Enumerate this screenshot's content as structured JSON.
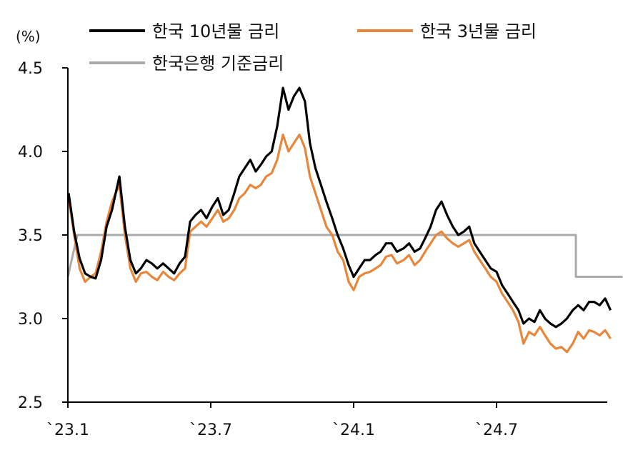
{
  "chart_data": {
    "type": "line",
    "title": "",
    "xlabel": "",
    "ylabel": "(%)",
    "ylim": [
      2.5,
      4.5
    ],
    "yticks": [
      "4.5",
      "4.0",
      "3.5",
      "3.0",
      "2.5"
    ],
    "xticks": [
      "`23.1",
      "`23.7",
      "`24.1",
      "`24.7"
    ],
    "x_range": [
      "2023-01",
      "2024-12"
    ],
    "legend_position": "top",
    "grid": false,
    "series": [
      {
        "name": "한국 10년물 금리",
        "color": "#000000",
        "points": [
          [
            "2023-01-02",
            3.75
          ],
          [
            "2023-01-09",
            3.52
          ],
          [
            "2023-01-16",
            3.36
          ],
          [
            "2023-01-23",
            3.27
          ],
          [
            "2023-01-30",
            3.25
          ],
          [
            "2023-02-06",
            3.24
          ],
          [
            "2023-02-13",
            3.35
          ],
          [
            "2023-02-20",
            3.55
          ],
          [
            "2023-02-27",
            3.65
          ],
          [
            "2023-03-06",
            3.85
          ],
          [
            "2023-03-13",
            3.55
          ],
          [
            "2023-03-20",
            3.35
          ],
          [
            "2023-03-27",
            3.27
          ],
          [
            "2023-04-03",
            3.3
          ],
          [
            "2023-04-10",
            3.35
          ],
          [
            "2023-04-17",
            3.33
          ],
          [
            "2023-04-24",
            3.3
          ],
          [
            "2023-05-01",
            3.33
          ],
          [
            "2023-05-08",
            3.3
          ],
          [
            "2023-05-15",
            3.27
          ],
          [
            "2023-05-22",
            3.33
          ],
          [
            "2023-05-29",
            3.37
          ],
          [
            "2023-06-05",
            3.58
          ],
          [
            "2023-06-12",
            3.62
          ],
          [
            "2023-06-19",
            3.65
          ],
          [
            "2023-06-26",
            3.6
          ],
          [
            "2023-07-03",
            3.67
          ],
          [
            "2023-07-10",
            3.72
          ],
          [
            "2023-07-17",
            3.62
          ],
          [
            "2023-07-24",
            3.65
          ],
          [
            "2023-07-31",
            3.75
          ],
          [
            "2023-08-07",
            3.85
          ],
          [
            "2023-08-14",
            3.9
          ],
          [
            "2023-08-21",
            3.95
          ],
          [
            "2023-08-28",
            3.88
          ],
          [
            "2023-09-04",
            3.92
          ],
          [
            "2023-09-11",
            3.97
          ],
          [
            "2023-09-18",
            4.0
          ],
          [
            "2023-09-25",
            4.15
          ],
          [
            "2023-10-02",
            4.38
          ],
          [
            "2023-10-09",
            4.25
          ],
          [
            "2023-10-16",
            4.33
          ],
          [
            "2023-10-23",
            4.38
          ],
          [
            "2023-10-30",
            4.3
          ],
          [
            "2023-11-06",
            4.05
          ],
          [
            "2023-11-13",
            3.9
          ],
          [
            "2023-11-20",
            3.8
          ],
          [
            "2023-11-27",
            3.7
          ],
          [
            "2023-12-04",
            3.6
          ],
          [
            "2023-12-11",
            3.5
          ],
          [
            "2023-12-18",
            3.42
          ],
          [
            "2023-12-25",
            3.32
          ],
          [
            "2024-01-01",
            3.25
          ],
          [
            "2024-01-08",
            3.3
          ],
          [
            "2024-01-15",
            3.35
          ],
          [
            "2024-01-22",
            3.35
          ],
          [
            "2024-01-29",
            3.38
          ],
          [
            "2024-02-05",
            3.4
          ],
          [
            "2024-02-12",
            3.45
          ],
          [
            "2024-02-19",
            3.45
          ],
          [
            "2024-02-26",
            3.4
          ],
          [
            "2024-03-04",
            3.42
          ],
          [
            "2024-03-11",
            3.45
          ],
          [
            "2024-03-18",
            3.4
          ],
          [
            "2024-03-25",
            3.42
          ],
          [
            "2024-04-01",
            3.48
          ],
          [
            "2024-04-08",
            3.55
          ],
          [
            "2024-04-15",
            3.65
          ],
          [
            "2024-04-22",
            3.7
          ],
          [
            "2024-04-29",
            3.62
          ],
          [
            "2024-05-06",
            3.55
          ],
          [
            "2024-05-13",
            3.5
          ],
          [
            "2024-05-20",
            3.52
          ],
          [
            "2024-05-27",
            3.55
          ],
          [
            "2024-06-03",
            3.45
          ],
          [
            "2024-06-10",
            3.4
          ],
          [
            "2024-06-17",
            3.35
          ],
          [
            "2024-06-24",
            3.3
          ],
          [
            "2024-07-01",
            3.28
          ],
          [
            "2024-07-08",
            3.2
          ],
          [
            "2024-07-15",
            3.15
          ],
          [
            "2024-07-22",
            3.1
          ],
          [
            "2024-07-29",
            3.05
          ],
          [
            "2024-08-05",
            2.97
          ],
          [
            "2024-08-12",
            3.0
          ],
          [
            "2024-08-19",
            2.98
          ],
          [
            "2024-08-26",
            3.05
          ],
          [
            "2024-09-02",
            3.0
          ],
          [
            "2024-09-09",
            2.97
          ],
          [
            "2024-09-16",
            2.95
          ],
          [
            "2024-09-23",
            2.97
          ],
          [
            "2024-09-30",
            3.0
          ],
          [
            "2024-10-07",
            3.05
          ],
          [
            "2024-10-14",
            3.08
          ],
          [
            "2024-10-21",
            3.05
          ],
          [
            "2024-10-28",
            3.1
          ],
          [
            "2024-11-04",
            3.1
          ],
          [
            "2024-11-11",
            3.08
          ],
          [
            "2024-11-18",
            3.12
          ],
          [
            "2024-11-25",
            3.05
          ]
        ]
      },
      {
        "name": "한국 3년물 금리",
        "color": "#E8863A",
        "points": [
          [
            "2023-01-02",
            3.72
          ],
          [
            "2023-01-09",
            3.5
          ],
          [
            "2023-01-16",
            3.3
          ],
          [
            "2023-01-23",
            3.22
          ],
          [
            "2023-01-30",
            3.25
          ],
          [
            "2023-02-06",
            3.27
          ],
          [
            "2023-02-13",
            3.4
          ],
          [
            "2023-02-20",
            3.58
          ],
          [
            "2023-02-27",
            3.7
          ],
          [
            "2023-03-06",
            3.8
          ],
          [
            "2023-03-13",
            3.5
          ],
          [
            "2023-03-20",
            3.3
          ],
          [
            "2023-03-27",
            3.22
          ],
          [
            "2023-04-03",
            3.27
          ],
          [
            "2023-04-10",
            3.28
          ],
          [
            "2023-04-17",
            3.25
          ],
          [
            "2023-04-24",
            3.23
          ],
          [
            "2023-05-01",
            3.28
          ],
          [
            "2023-05-08",
            3.25
          ],
          [
            "2023-05-15",
            3.23
          ],
          [
            "2023-05-22",
            3.27
          ],
          [
            "2023-05-29",
            3.3
          ],
          [
            "2023-06-05",
            3.52
          ],
          [
            "2023-06-12",
            3.55
          ],
          [
            "2023-06-19",
            3.58
          ],
          [
            "2023-06-26",
            3.55
          ],
          [
            "2023-07-03",
            3.6
          ],
          [
            "2023-07-10",
            3.65
          ],
          [
            "2023-07-17",
            3.58
          ],
          [
            "2023-07-24",
            3.6
          ],
          [
            "2023-07-31",
            3.65
          ],
          [
            "2023-08-07",
            3.72
          ],
          [
            "2023-08-14",
            3.75
          ],
          [
            "2023-08-21",
            3.8
          ],
          [
            "2023-08-28",
            3.78
          ],
          [
            "2023-09-04",
            3.8
          ],
          [
            "2023-09-11",
            3.85
          ],
          [
            "2023-09-18",
            3.87
          ],
          [
            "2023-09-25",
            3.95
          ],
          [
            "2023-10-02",
            4.1
          ],
          [
            "2023-10-09",
            4.0
          ],
          [
            "2023-10-16",
            4.05
          ],
          [
            "2023-10-23",
            4.1
          ],
          [
            "2023-10-30",
            4.02
          ],
          [
            "2023-11-06",
            3.85
          ],
          [
            "2023-11-13",
            3.75
          ],
          [
            "2023-11-20",
            3.65
          ],
          [
            "2023-11-27",
            3.55
          ],
          [
            "2023-12-04",
            3.5
          ],
          [
            "2023-12-11",
            3.4
          ],
          [
            "2023-12-18",
            3.35
          ],
          [
            "2023-12-25",
            3.22
          ],
          [
            "2024-01-01",
            3.17
          ],
          [
            "2024-01-08",
            3.25
          ],
          [
            "2024-01-15",
            3.27
          ],
          [
            "2024-01-22",
            3.28
          ],
          [
            "2024-01-29",
            3.3
          ],
          [
            "2024-02-05",
            3.32
          ],
          [
            "2024-02-12",
            3.37
          ],
          [
            "2024-02-19",
            3.38
          ],
          [
            "2024-02-26",
            3.33
          ],
          [
            "2024-03-04",
            3.35
          ],
          [
            "2024-03-11",
            3.38
          ],
          [
            "2024-03-18",
            3.32
          ],
          [
            "2024-03-25",
            3.35
          ],
          [
            "2024-04-01",
            3.4
          ],
          [
            "2024-04-08",
            3.45
          ],
          [
            "2024-04-15",
            3.5
          ],
          [
            "2024-04-22",
            3.52
          ],
          [
            "2024-04-29",
            3.48
          ],
          [
            "2024-05-06",
            3.45
          ],
          [
            "2024-05-13",
            3.43
          ],
          [
            "2024-05-20",
            3.45
          ],
          [
            "2024-05-27",
            3.47
          ],
          [
            "2024-06-03",
            3.4
          ],
          [
            "2024-06-10",
            3.35
          ],
          [
            "2024-06-17",
            3.3
          ],
          [
            "2024-06-24",
            3.25
          ],
          [
            "2024-07-01",
            3.22
          ],
          [
            "2024-07-08",
            3.15
          ],
          [
            "2024-07-15",
            3.1
          ],
          [
            "2024-07-22",
            3.05
          ],
          [
            "2024-07-29",
            2.98
          ],
          [
            "2024-08-05",
            2.85
          ],
          [
            "2024-08-12",
            2.92
          ],
          [
            "2024-08-19",
            2.9
          ],
          [
            "2024-08-26",
            2.95
          ],
          [
            "2024-09-02",
            2.9
          ],
          [
            "2024-09-09",
            2.85
          ],
          [
            "2024-09-16",
            2.82
          ],
          [
            "2024-09-23",
            2.83
          ],
          [
            "2024-09-30",
            2.8
          ],
          [
            "2024-10-07",
            2.85
          ],
          [
            "2024-10-14",
            2.92
          ],
          [
            "2024-10-21",
            2.88
          ],
          [
            "2024-10-28",
            2.93
          ],
          [
            "2024-11-04",
            2.92
          ],
          [
            "2024-11-11",
            2.9
          ],
          [
            "2024-11-18",
            2.93
          ],
          [
            "2024-11-25",
            2.88
          ]
        ]
      },
      {
        "name": "한국은행 기준금리",
        "color": "#AAAAAA",
        "step": true,
        "points": [
          [
            "2023-01-01",
            3.25
          ],
          [
            "2023-01-13",
            3.5
          ],
          [
            "2024-10-11",
            3.5
          ],
          [
            "2024-10-11",
            3.25
          ],
          [
            "2024-12-10",
            3.25
          ]
        ]
      }
    ]
  }
}
